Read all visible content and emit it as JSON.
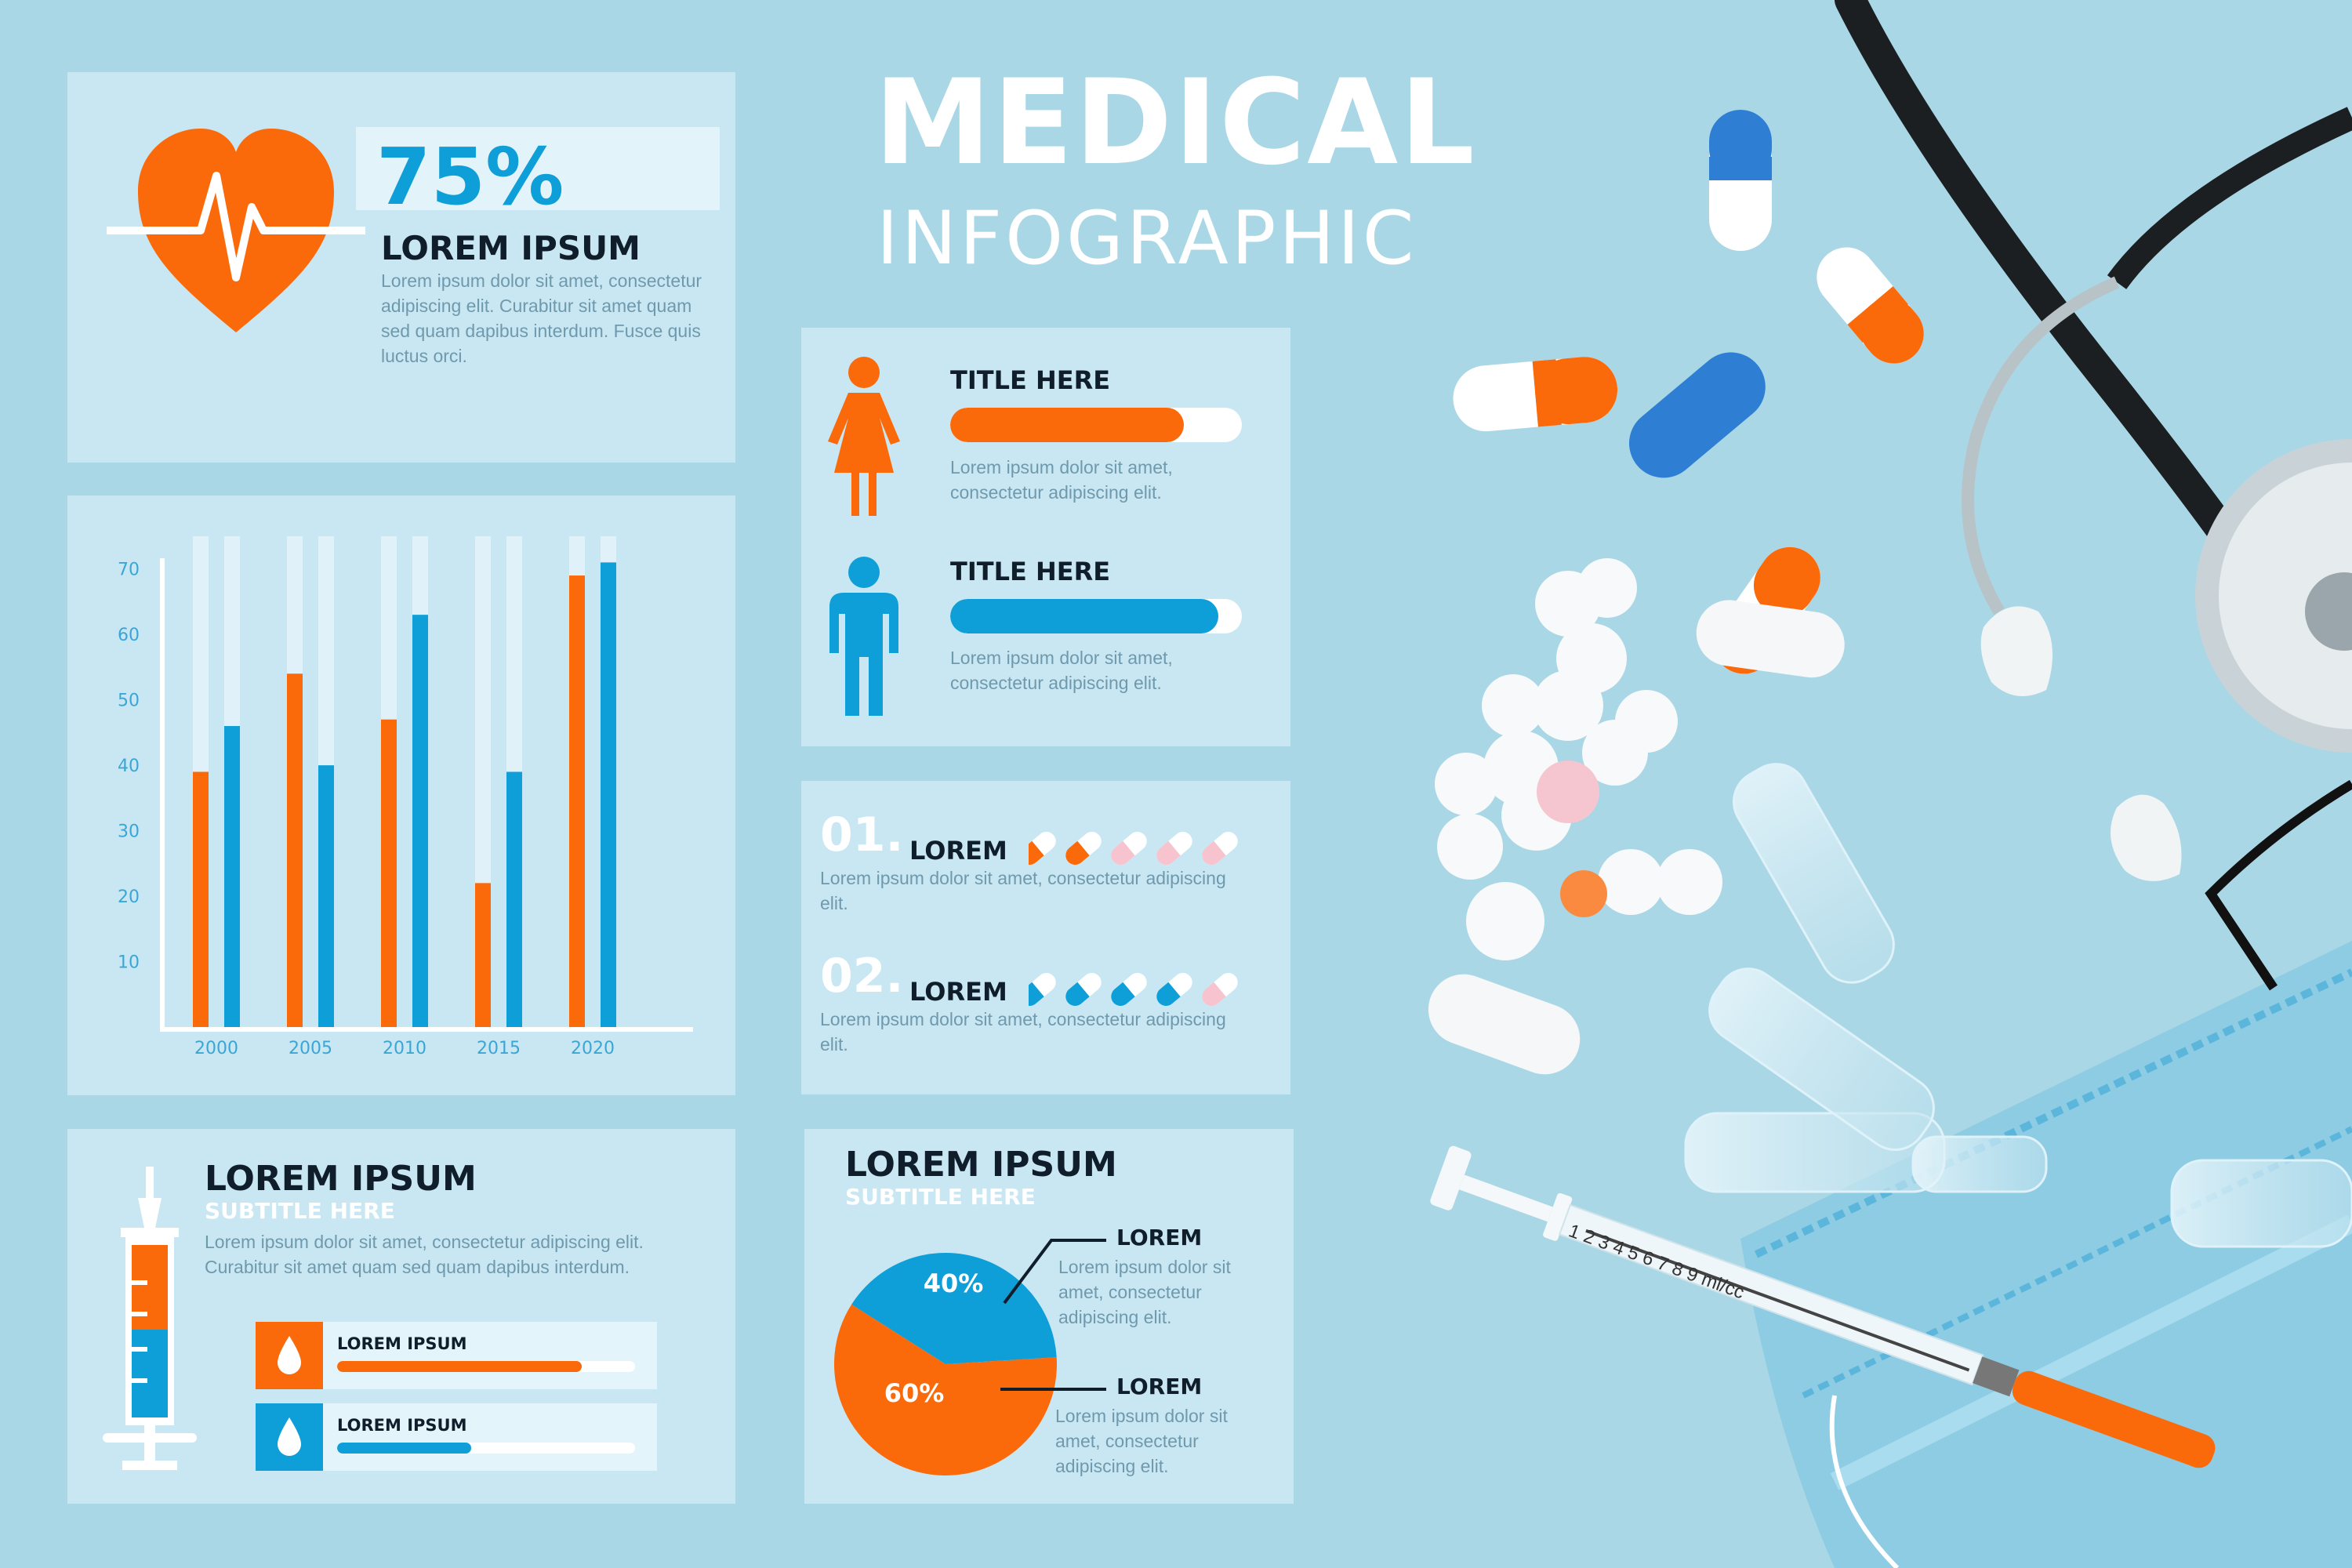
{
  "header": {
    "title_line1": "MEDICAL",
    "title_line2": "INFOGRAPHIC"
  },
  "colors": {
    "orange": "#fa6a0a",
    "blue": "#0e9ed8",
    "background": "#aad7e6"
  },
  "stat_card": {
    "icon": "heart-pulse-icon",
    "percent": "75%",
    "heading": "LOREM IPSUM",
    "body": "Lorem ipsum dolor sit amet, consectetur adipiscing elit. Curabitur sit amet quam sed quam dapibus interdum. Fusce quis luctus orci."
  },
  "chart_data": {
    "type": "bar",
    "categories": [
      "2000",
      "2005",
      "2010",
      "2015",
      "2020"
    ],
    "series": [
      {
        "color": "#fa6a0a",
        "values": [
          39,
          54,
          47,
          22,
          69
        ]
      },
      {
        "color": "#0e9ed8",
        "values": [
          46,
          40,
          63,
          39,
          71
        ]
      }
    ],
    "yticks": [
      "10",
      "20",
      "30",
      "40",
      "50",
      "60",
      "70"
    ],
    "ylim": [
      0,
      75
    ],
    "title": "",
    "xlabel": "",
    "ylabel": ""
  },
  "gender_card": {
    "female": {
      "icon": "female-icon",
      "title": "TITLE HERE",
      "progress": 0.8,
      "body": "Lorem ipsum dolor sit amet, consectetur adipiscing elit."
    },
    "male": {
      "icon": "male-icon",
      "title": "TITLE HERE",
      "progress": 0.92,
      "body": "Lorem ipsum dolor sit amet, consectetur adipiscing elit."
    }
  },
  "ratings_card": {
    "items": [
      {
        "number": "01.",
        "label": "LOREM",
        "rating": 2,
        "of": 5,
        "body": "Lorem ipsum dolor sit amet, consectetur adipiscing elit."
      },
      {
        "number": "02.",
        "label": "LOREM",
        "rating": 4,
        "of": 5,
        "body": "Lorem ipsum dolor sit amet, consectetur adipiscing elit."
      }
    ]
  },
  "syringe_card": {
    "icon": "syringe-icon",
    "heading": "LOREM IPSUM",
    "subtitle": "SUBTITLE HERE",
    "body": "Lorem ipsum dolor sit amet, consectetur adipiscing elit. Curabitur sit amet quam sed quam dapibus interdum.",
    "rows": [
      {
        "icon": "drop-icon",
        "label": "LOREM IPSUM",
        "progress": 0.82,
        "color": "#fa6a0a"
      },
      {
        "icon": "drop-icon",
        "label": "LOREM IPSUM",
        "progress": 0.45,
        "color": "#0e9ed8"
      }
    ]
  },
  "pie_card": {
    "heading": "LOREM IPSUM",
    "subtitle": "SUBTITLE HERE",
    "slices": [
      {
        "label": "40%",
        "value": 40,
        "color": "#0e9ed8",
        "legend": "LOREM",
        "body": "Lorem ipsum dolor sit amet, consectetur adipiscing elit."
      },
      {
        "label": "60%",
        "value": 60,
        "color": "#fa6a0a",
        "legend": "LOREM",
        "body": "Lorem ipsum dolor sit amet, consectetur adipiscing elit."
      }
    ]
  },
  "photo": {
    "objects": [
      "stethoscope",
      "capsules",
      "pills",
      "ampoules",
      "syringe",
      "face-mask"
    ],
    "syringe_scale": [
      "1",
      "2",
      "3",
      "4",
      "5",
      "6",
      "7",
      "8",
      "9",
      "ml/cc"
    ]
  }
}
